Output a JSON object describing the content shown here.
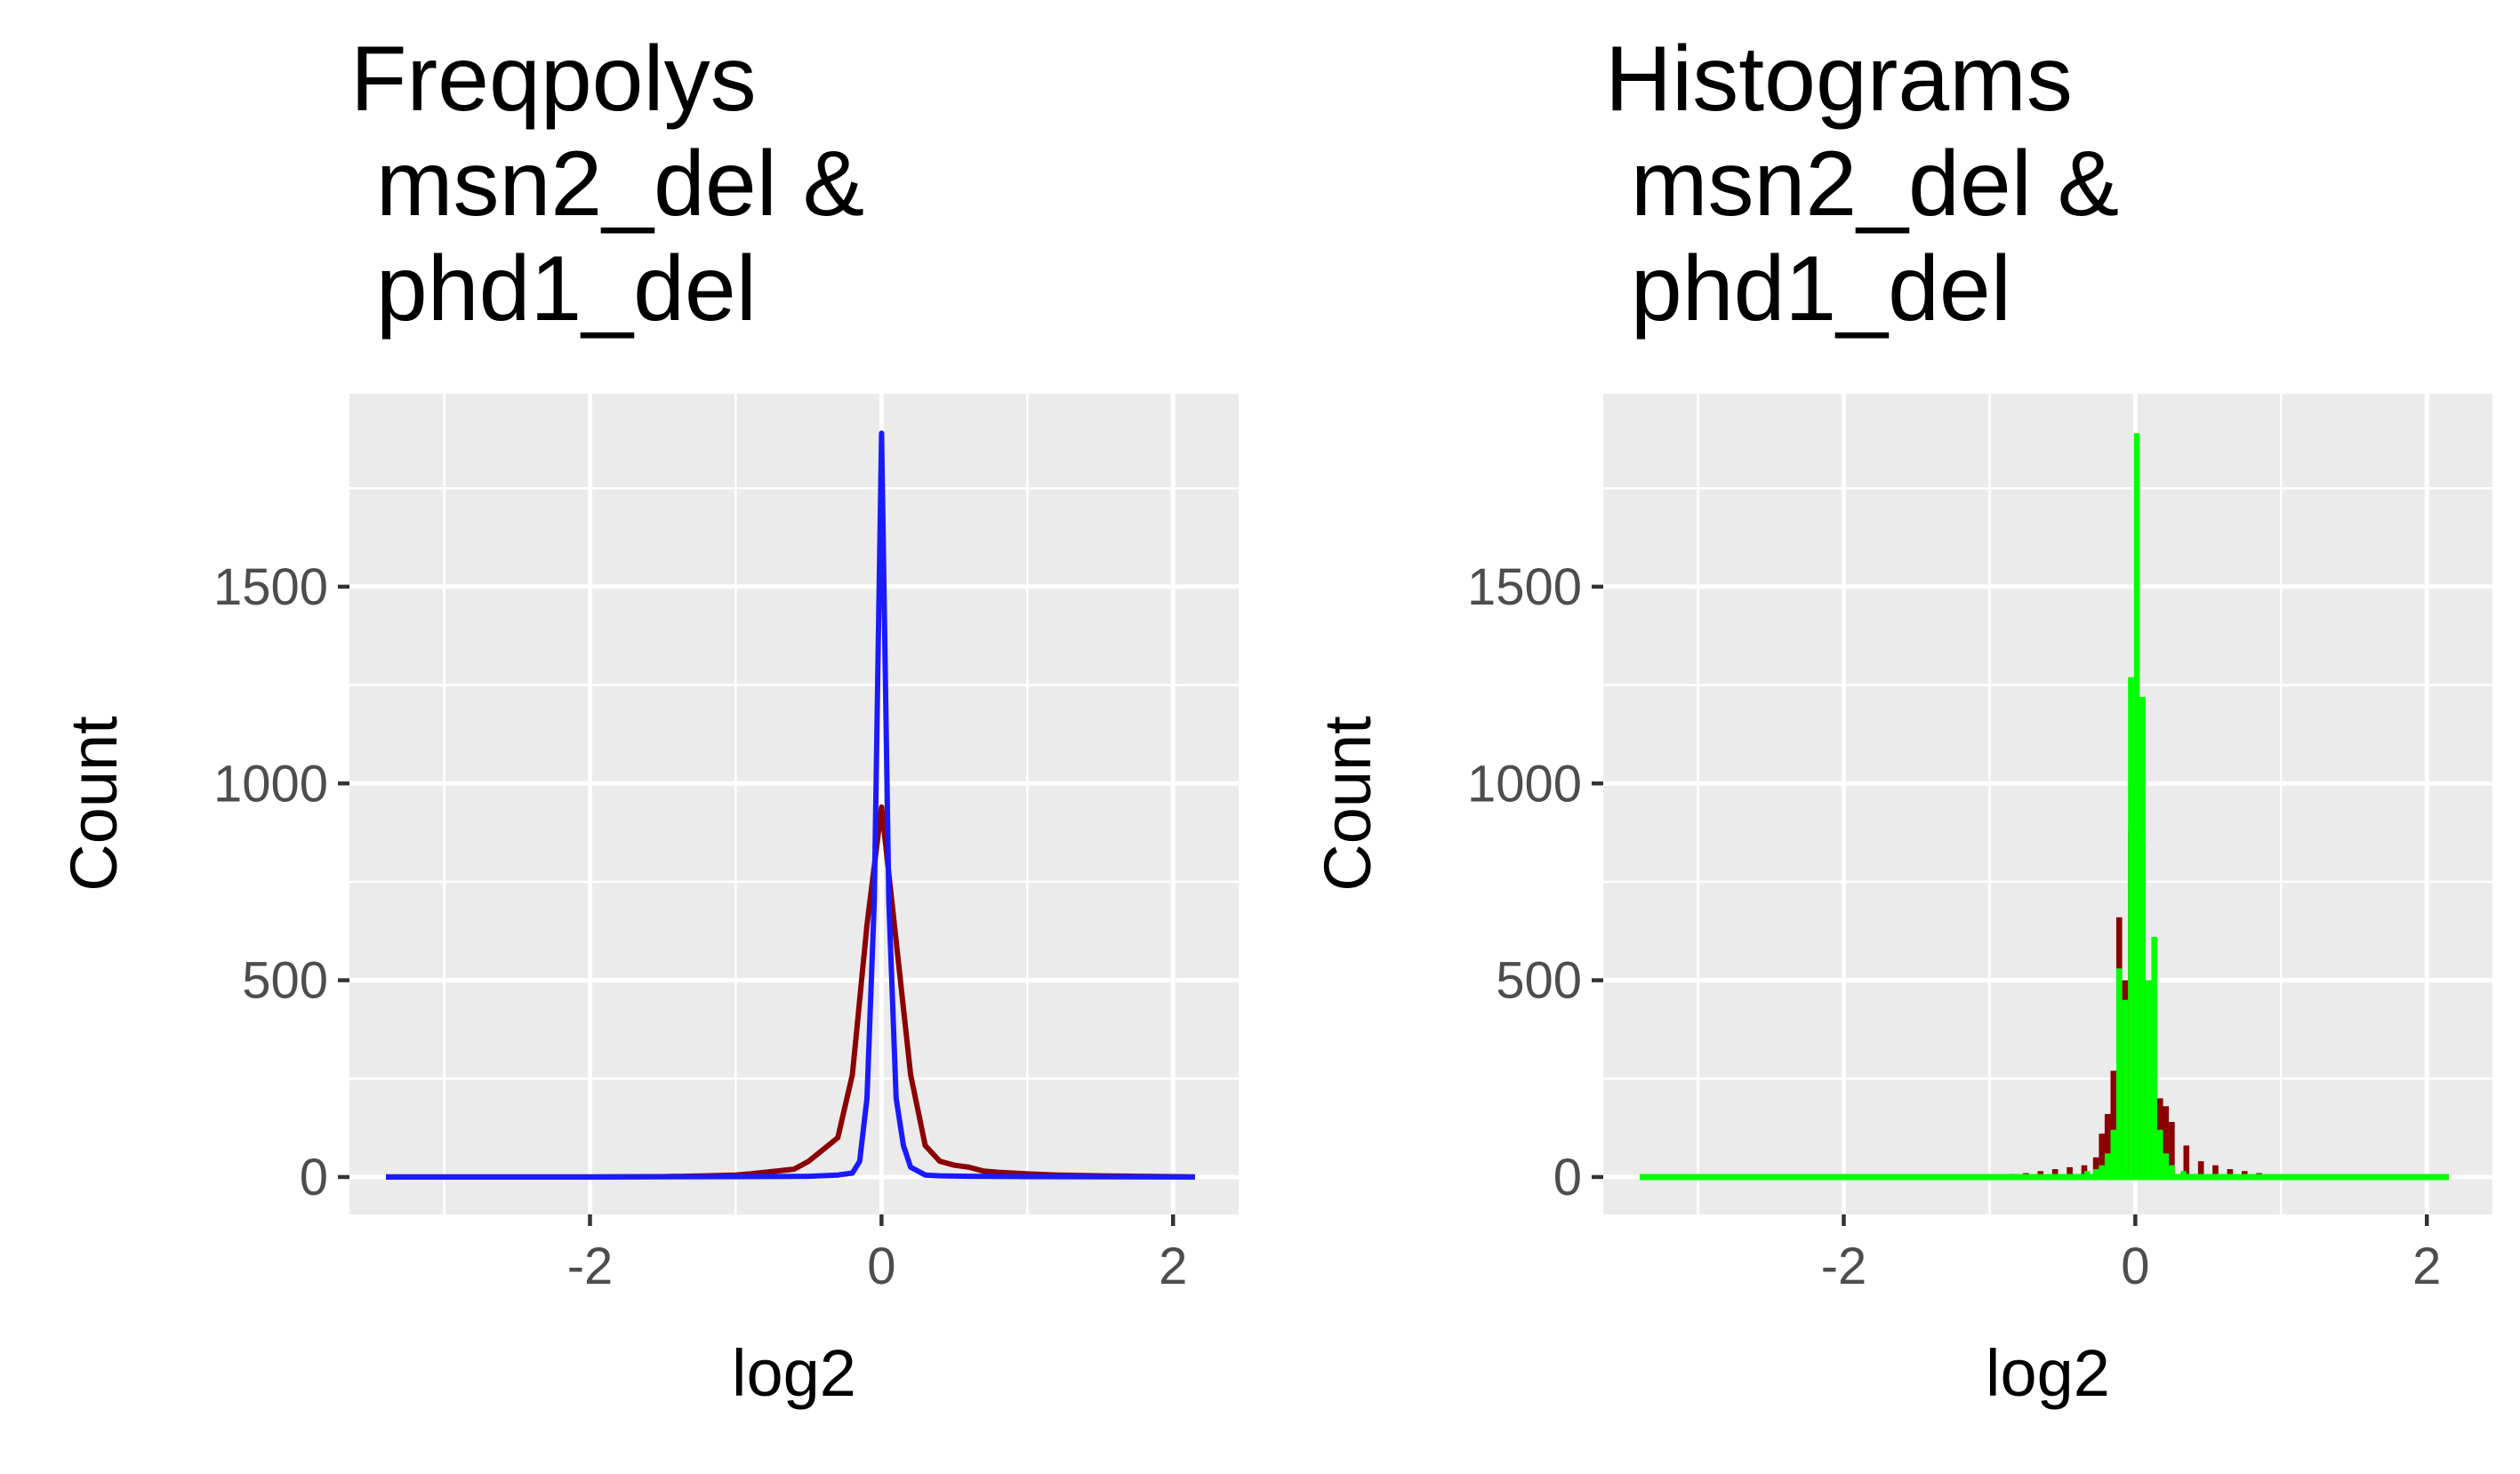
{
  "chart_data": [
    {
      "type": "line",
      "title_lines": [
        "Freqpolys",
        " msn2_del &",
        " phd1_del"
      ],
      "xlabel": "log2",
      "ylabel": "Count",
      "xlim": [
        -3.65,
        2.45
      ],
      "ylim": [
        -95,
        1990
      ],
      "xticks": [
        -2,
        0,
        2
      ],
      "yticks": [
        0,
        500,
        1000,
        1500
      ],
      "grid": true,
      "legend": "none",
      "series": [
        {
          "color": "#8b0000",
          "x": [
            -3.4,
            -3.0,
            -2.5,
            -2.0,
            -1.5,
            -1.2,
            -1.0,
            -0.9,
            -0.8,
            -0.7,
            -0.6,
            -0.5,
            -0.4,
            -0.3,
            -0.2,
            -0.1,
            0.0,
            0.1,
            0.2,
            0.3,
            0.4,
            0.5,
            0.6,
            0.7,
            0.8,
            0.9,
            1.0,
            1.2,
            1.5,
            2.0,
            2.15
          ],
          "y": [
            0,
            0,
            0,
            0,
            1,
            3,
            5,
            8,
            12,
            16,
            20,
            40,
            70,
            100,
            260,
            640,
            940,
            600,
            260,
            80,
            40,
            30,
            25,
            15,
            12,
            10,
            8,
            5,
            3,
            1,
            0
          ]
        },
        {
          "color": "#1a1aff",
          "x": [
            -3.4,
            -3.0,
            -2.0,
            -1.0,
            -0.5,
            -0.3,
            -0.2,
            -0.15,
            -0.1,
            -0.05,
            0.0,
            0.05,
            0.1,
            0.15,
            0.2,
            0.3,
            0.4,
            0.6,
            1.0,
            2.0,
            2.15
          ],
          "y": [
            0,
            0,
            0,
            1,
            2,
            5,
            10,
            40,
            200,
            700,
            1890,
            700,
            200,
            80,
            25,
            5,
            3,
            2,
            1,
            0,
            0
          ]
        }
      ]
    },
    {
      "type": "bar",
      "title_lines": [
        "Histograms",
        " msn2_del &",
        " phd1_del"
      ],
      "xlabel": "log2",
      "ylabel": "Count",
      "xlim": [
        -3.65,
        2.45
      ],
      "ylim": [
        -95,
        1990
      ],
      "xticks": [
        -2,
        0,
        2
      ],
      "yticks": [
        0,
        500,
        1000,
        1500
      ],
      "grid": true,
      "legend": "none",
      "series": [
        {
          "color": "#8b0000",
          "x": [
            -0.85,
            -0.75,
            -0.65,
            -0.55,
            -0.45,
            -0.35,
            -0.27,
            -0.23,
            -0.19,
            -0.15,
            -0.11,
            -0.07,
            -0.03,
            0.01,
            0.05,
            0.09,
            0.13,
            0.17,
            0.21,
            0.25,
            0.35,
            0.45,
            0.55,
            0.65,
            0.75,
            0.85
          ],
          "y": [
            8,
            10,
            15,
            20,
            25,
            30,
            50,
            110,
            160,
            270,
            660,
            500,
            880,
            1000,
            850,
            500,
            380,
            200,
            180,
            140,
            80,
            40,
            30,
            20,
            15,
            10
          ]
        },
        {
          "color": "#00ff00",
          "x": [
            -0.41,
            -0.33,
            -0.27,
            -0.23,
            -0.19,
            -0.15,
            -0.11,
            -0.07,
            -0.03,
            0.01,
            0.05,
            0.09,
            0.13,
            0.17,
            0.21,
            0.25,
            0.33,
            0.41
          ],
          "y": [
            8,
            15,
            20,
            30,
            60,
            120,
            530,
            450,
            1270,
            1890,
            1220,
            500,
            610,
            120,
            60,
            30,
            15,
            8
          ]
        }
      ]
    }
  ]
}
